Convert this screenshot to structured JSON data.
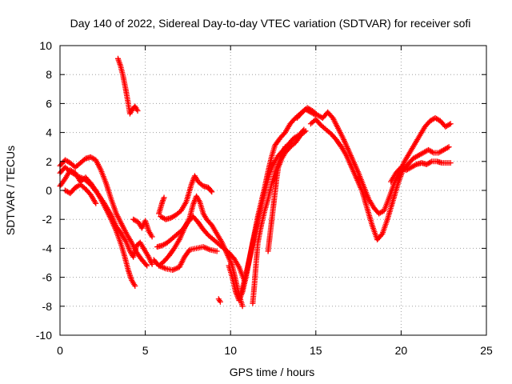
{
  "chart_data": {
    "type": "scatter",
    "title": "Day 140 of 2022, Sidereal Day-to-day VTEC variation (SDTVAR) for receiver sofi",
    "xlabel": "GPS time / hours",
    "ylabel": "SDTVAR / TECUs",
    "xlim": [
      0,
      25
    ],
    "ylim": [
      -10,
      10
    ],
    "x_ticks": [
      0,
      5,
      10,
      15,
      20,
      25
    ],
    "y_ticks": [
      -10,
      -8,
      -6,
      -4,
      -2,
      0,
      2,
      4,
      6,
      8,
      10
    ],
    "grid": true,
    "marker": "+",
    "series_color": "#ff0000",
    "series": [
      {
        "name": "track-1",
        "points": [
          [
            0.0,
            1.2
          ],
          [
            0.3,
            1.6
          ],
          [
            0.6,
            1.3
          ],
          [
            1.0,
            1.0
          ],
          [
            1.4,
            0.8
          ],
          [
            1.8,
            0.4
          ],
          [
            2.2,
            -0.2
          ],
          [
            2.6,
            -0.9
          ],
          [
            3.0,
            -1.7
          ],
          [
            3.3,
            -2.5
          ],
          [
            3.6,
            -3.0
          ],
          [
            3.9,
            -3.6
          ],
          [
            4.1,
            -4.2
          ],
          [
            4.3,
            -4.6
          ],
          [
            4.5,
            -3.8
          ],
          [
            4.7,
            -3.6
          ],
          [
            4.9,
            -4.0
          ],
          [
            5.2,
            -4.6
          ],
          [
            5.4,
            -5.1
          ]
        ]
      },
      {
        "name": "track-2",
        "points": [
          [
            0.0,
            0.3
          ],
          [
            0.3,
            0.8
          ],
          [
            0.6,
            1.4
          ],
          [
            0.9,
            1.2
          ],
          [
            1.2,
            0.6
          ],
          [
            1.5,
            0.9
          ],
          [
            1.8,
            0.5
          ],
          [
            2.1,
            0.0
          ],
          [
            2.4,
            -0.6
          ],
          [
            2.7,
            -1.3
          ],
          [
            3.0,
            -2.0
          ],
          [
            3.3,
            -2.8
          ],
          [
            3.6,
            -3.8
          ],
          [
            3.8,
            -4.6
          ],
          [
            4.0,
            -5.5
          ],
          [
            4.2,
            -6.2
          ],
          [
            4.4,
            -6.6
          ]
        ]
      },
      {
        "name": "track-3",
        "points": [
          [
            0.0,
            1.7
          ],
          [
            0.3,
            2.1
          ],
          [
            0.6,
            1.9
          ],
          [
            0.9,
            1.6
          ],
          [
            1.2,
            1.9
          ],
          [
            1.5,
            2.2
          ],
          [
            1.8,
            2.3
          ],
          [
            2.1,
            2.1
          ],
          [
            2.4,
            1.4
          ],
          [
            2.7,
            0.5
          ],
          [
            3.0,
            -0.6
          ],
          [
            3.3,
            -1.6
          ],
          [
            3.6,
            -2.3
          ],
          [
            3.9,
            -3.0
          ],
          [
            4.2,
            -3.6
          ],
          [
            4.5,
            -4.3
          ],
          [
            4.8,
            -4.8
          ],
          [
            5.1,
            -5.2
          ]
        ]
      },
      {
        "name": "track-4",
        "points": [
          [
            0.3,
            0.0
          ],
          [
            0.6,
            -0.2
          ],
          [
            0.9,
            0.2
          ],
          [
            1.2,
            0.4
          ],
          [
            1.5,
            0.1
          ],
          [
            1.8,
            -0.3
          ],
          [
            2.1,
            -0.9
          ]
        ]
      },
      {
        "name": "track-5",
        "points": [
          [
            3.4,
            9.1
          ],
          [
            3.55,
            8.6
          ],
          [
            3.7,
            7.9
          ],
          [
            3.85,
            7.0
          ],
          [
            4.0,
            6.0
          ],
          [
            4.1,
            5.3
          ],
          [
            4.25,
            5.6
          ],
          [
            4.4,
            5.8
          ],
          [
            4.55,
            5.5
          ]
        ]
      },
      {
        "name": "track-6",
        "points": [
          [
            4.3,
            -2.0
          ],
          [
            4.6,
            -2.2
          ],
          [
            4.8,
            -2.6
          ],
          [
            5.0,
            -2.1
          ],
          [
            5.2,
            -2.8
          ],
          [
            5.4,
            -3.2
          ]
        ]
      },
      {
        "name": "track-7",
        "points": [
          [
            5.7,
            -3.9
          ],
          [
            6.0,
            -3.8
          ],
          [
            6.3,
            -3.6
          ],
          [
            6.6,
            -3.3
          ],
          [
            6.9,
            -3.0
          ],
          [
            7.2,
            -2.7
          ],
          [
            7.5,
            -2.2
          ],
          [
            7.8,
            -1.8
          ],
          [
            8.1,
            -2.2
          ],
          [
            8.4,
            -2.7
          ],
          [
            8.7,
            -3.1
          ],
          [
            9.0,
            -3.4
          ],
          [
            9.3,
            -3.7
          ],
          [
            9.6,
            -4.0
          ],
          [
            9.9,
            -4.3
          ],
          [
            10.2,
            -4.7
          ],
          [
            10.5,
            -5.3
          ],
          [
            10.8,
            -6.2
          ]
        ]
      },
      {
        "name": "track-8",
        "points": [
          [
            5.9,
            -1.8
          ],
          [
            6.2,
            -2.0
          ],
          [
            6.5,
            -1.9
          ],
          [
            6.8,
            -1.7
          ],
          [
            7.1,
            -1.4
          ],
          [
            7.4,
            -0.8
          ],
          [
            7.7,
            0.4
          ],
          [
            7.9,
            1.0
          ],
          [
            8.1,
            0.6
          ],
          [
            8.4,
            0.3
          ],
          [
            8.7,
            0.2
          ],
          [
            8.9,
            -0.1
          ]
        ]
      },
      {
        "name": "track-9",
        "points": [
          [
            5.8,
            -5.2
          ],
          [
            6.1,
            -4.9
          ],
          [
            6.4,
            -4.5
          ],
          [
            6.7,
            -4.0
          ],
          [
            7.0,
            -3.4
          ],
          [
            7.3,
            -2.6
          ],
          [
            7.6,
            -1.9
          ],
          [
            7.8,
            -1.0
          ],
          [
            8.0,
            -0.4
          ],
          [
            8.2,
            -0.8
          ],
          [
            8.4,
            -1.6
          ],
          [
            8.6,
            -2.0
          ],
          [
            8.9,
            -2.4
          ],
          [
            9.2,
            -3.0
          ],
          [
            9.5,
            -3.6
          ],
          [
            9.8,
            -4.4
          ],
          [
            10.1,
            -5.2
          ],
          [
            10.3,
            -6.2
          ],
          [
            10.5,
            -7.2
          ],
          [
            10.7,
            -8.0
          ]
        ]
      },
      {
        "name": "track-10",
        "points": [
          [
            5.5,
            -4.8
          ],
          [
            5.8,
            -5.2
          ],
          [
            6.2,
            -5.4
          ],
          [
            6.6,
            -5.5
          ],
          [
            7.0,
            -5.3
          ],
          [
            7.3,
            -4.6
          ],
          [
            7.6,
            -4.1
          ],
          [
            8.0,
            -4.0
          ],
          [
            8.4,
            -3.9
          ],
          [
            8.8,
            -4.1
          ],
          [
            9.2,
            -4.2
          ]
        ]
      },
      {
        "name": "track-11",
        "points": [
          [
            5.8,
            -1.6
          ],
          [
            5.9,
            -1.2
          ],
          [
            6.0,
            -0.8
          ],
          [
            6.1,
            -0.5
          ]
        ]
      },
      {
        "name": "track-12",
        "points": [
          [
            9.3,
            -7.5
          ],
          [
            9.4,
            -7.7
          ]
        ]
      },
      {
        "name": "track-13",
        "points": [
          [
            9.9,
            -5.2
          ],
          [
            10.1,
            -6.0
          ],
          [
            10.3,
            -7.0
          ],
          [
            10.5,
            -7.6
          ],
          [
            10.7,
            -7.0
          ],
          [
            10.9,
            -6.0
          ],
          [
            11.1,
            -4.8
          ],
          [
            11.3,
            -3.6
          ],
          [
            11.5,
            -2.6
          ],
          [
            11.7,
            -1.6
          ],
          [
            11.9,
            -0.6
          ],
          [
            12.1,
            0.4
          ],
          [
            12.3,
            1.2
          ],
          [
            12.5,
            1.8
          ],
          [
            12.8,
            2.4
          ],
          [
            13.1,
            2.8
          ],
          [
            13.4,
            3.2
          ],
          [
            13.7,
            3.6
          ],
          [
            14.0,
            3.8
          ],
          [
            14.3,
            4.2
          ]
        ]
      },
      {
        "name": "track-14",
        "points": [
          [
            10.6,
            -7.2
          ],
          [
            10.8,
            -6.3
          ],
          [
            11.0,
            -5.3
          ],
          [
            11.2,
            -4.2
          ],
          [
            11.4,
            -3.0
          ],
          [
            11.6,
            -1.8
          ],
          [
            11.8,
            -0.8
          ],
          [
            12.0,
            0.2
          ],
          [
            12.2,
            1.3
          ],
          [
            12.4,
            2.3
          ],
          [
            12.6,
            3.1
          ],
          [
            12.9,
            3.6
          ],
          [
            13.2,
            4.0
          ],
          [
            13.5,
            4.6
          ],
          [
            13.8,
            5.0
          ],
          [
            14.1,
            5.3
          ],
          [
            14.4,
            5.6
          ],
          [
            14.7,
            5.4
          ],
          [
            15.0,
            5.2
          ]
        ]
      },
      {
        "name": "track-15",
        "points": [
          [
            11.3,
            -7.8
          ],
          [
            11.4,
            -6.5
          ],
          [
            11.5,
            -5.0
          ],
          [
            11.6,
            -3.6
          ],
          [
            11.8,
            -2.4
          ],
          [
            12.0,
            -1.4
          ],
          [
            12.2,
            -0.6
          ],
          [
            12.4,
            0.4
          ],
          [
            12.6,
            1.2
          ],
          [
            12.8,
            1.8
          ],
          [
            13.0,
            2.5
          ],
          [
            13.2,
            3.0
          ]
        ]
      },
      {
        "name": "track-16",
        "points": [
          [
            12.2,
            -4.2
          ],
          [
            12.3,
            -3.2
          ],
          [
            12.4,
            -2.2
          ],
          [
            12.5,
            -1.2
          ],
          [
            12.6,
            -0.2
          ],
          [
            12.7,
            0.8
          ],
          [
            12.8,
            1.6
          ],
          [
            13.0,
            2.2
          ],
          [
            13.2,
            2.6
          ],
          [
            13.5,
            3.0
          ],
          [
            13.8,
            3.3
          ],
          [
            14.1,
            3.8
          ],
          [
            14.4,
            4.1
          ]
        ]
      },
      {
        "name": "track-17",
        "points": [
          [
            13.9,
            5.0
          ],
          [
            14.2,
            5.4
          ],
          [
            14.5,
            5.7
          ],
          [
            14.8,
            5.5
          ],
          [
            15.1,
            5.2
          ],
          [
            15.4,
            5.0
          ],
          [
            15.7,
            5.4
          ],
          [
            16.0,
            5.0
          ],
          [
            16.3,
            4.3
          ],
          [
            16.6,
            3.6
          ],
          [
            16.9,
            2.8
          ],
          [
            17.2,
            2.0
          ],
          [
            17.5,
            1.2
          ],
          [
            17.8,
            0.3
          ],
          [
            18.1,
            -0.6
          ],
          [
            18.4,
            -1.2
          ],
          [
            18.7,
            -1.6
          ],
          [
            19.0,
            -1.4
          ],
          [
            19.3,
            -0.5
          ],
          [
            19.6,
            0.5
          ],
          [
            19.9,
            1.2
          ],
          [
            20.2,
            2.0
          ],
          [
            20.5,
            2.6
          ],
          [
            20.8,
            3.2
          ],
          [
            21.1,
            3.8
          ],
          [
            21.4,
            4.4
          ],
          [
            21.7,
            4.8
          ],
          [
            22.0,
            5.0
          ],
          [
            22.3,
            4.8
          ],
          [
            22.6,
            4.4
          ],
          [
            22.9,
            4.6
          ]
        ]
      },
      {
        "name": "track-18",
        "points": [
          [
            14.7,
            4.6
          ],
          [
            15.0,
            4.9
          ],
          [
            15.3,
            4.5
          ],
          [
            15.6,
            4.2
          ],
          [
            15.9,
            3.9
          ],
          [
            16.2,
            3.5
          ],
          [
            16.5,
            3.0
          ],
          [
            16.8,
            2.4
          ],
          [
            17.1,
            1.6
          ],
          [
            17.4,
            0.8
          ],
          [
            17.7,
            0.0
          ],
          [
            18.0,
            -1.2
          ],
          [
            18.3,
            -2.4
          ],
          [
            18.6,
            -3.4
          ],
          [
            18.9,
            -3.0
          ],
          [
            19.2,
            -2.0
          ],
          [
            19.5,
            -0.8
          ],
          [
            19.8,
            0.4
          ],
          [
            20.1,
            1.4
          ],
          [
            20.4,
            1.8
          ],
          [
            20.7,
            2.2
          ],
          [
            21.0,
            2.4
          ],
          [
            21.3,
            2.6
          ],
          [
            21.6,
            2.8
          ],
          [
            21.9,
            2.6
          ],
          [
            22.2,
            2.6
          ],
          [
            22.5,
            2.8
          ],
          [
            22.8,
            3.0
          ]
        ]
      },
      {
        "name": "track-19",
        "points": [
          [
            19.4,
            0.6
          ],
          [
            19.7,
            1.2
          ],
          [
            20.0,
            1.6
          ],
          [
            20.3,
            1.4
          ],
          [
            20.6,
            1.6
          ],
          [
            20.9,
            1.8
          ],
          [
            21.2,
            1.9
          ],
          [
            21.5,
            1.8
          ],
          [
            21.8,
            2.0
          ],
          [
            22.1,
            2.0
          ],
          [
            22.4,
            1.9
          ],
          [
            22.7,
            1.9
          ],
          [
            22.9,
            1.9
          ]
        ]
      }
    ]
  }
}
